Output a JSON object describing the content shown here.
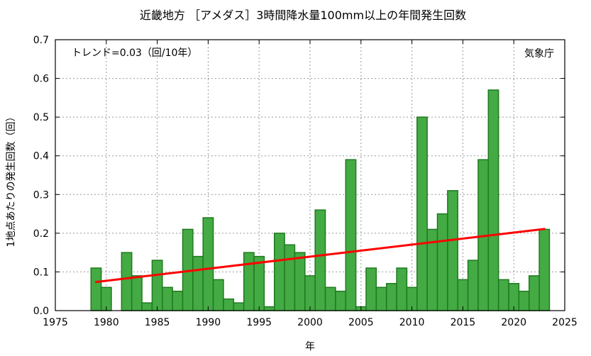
{
  "chart_data": {
    "type": "bar",
    "title": "近畿地方 ［アメダス］3時間降水量100mm以上の年間発生回数",
    "xlabel": "年",
    "ylabel": "1地点あたりの発生回数（回）",
    "trend_label": "トレンド=0.03（回/10年）",
    "source_label": "気象庁",
    "xlim": [
      1975,
      2025
    ],
    "ylim": [
      0,
      0.7
    ],
    "x_ticks": [
      1975,
      1980,
      1985,
      1990,
      1995,
      2000,
      2005,
      2010,
      2015,
      2020,
      2025
    ],
    "y_ticks": [
      0.0,
      0.1,
      0.2,
      0.3,
      0.4,
      0.5,
      0.6,
      0.7
    ],
    "grid": true,
    "bar_color": "#44aa44",
    "bar_edge_color": "#1f7a1f",
    "trend_color": "#ff0000",
    "x": [
      1979,
      1980,
      1981,
      1982,
      1983,
      1984,
      1985,
      1986,
      1987,
      1988,
      1989,
      1990,
      1991,
      1992,
      1993,
      1994,
      1995,
      1996,
      1997,
      1998,
      1999,
      2000,
      2001,
      2002,
      2003,
      2004,
      2005,
      2006,
      2007,
      2008,
      2009,
      2010,
      2011,
      2012,
      2013,
      2014,
      2015,
      2016,
      2017,
      2018,
      2019,
      2020,
      2021,
      2022,
      2023
    ],
    "values": [
      0.11,
      0.06,
      0.0,
      0.15,
      0.09,
      0.02,
      0.13,
      0.06,
      0.05,
      0.21,
      0.14,
      0.24,
      0.08,
      0.03,
      0.02,
      0.15,
      0.14,
      0.01,
      0.2,
      0.17,
      0.15,
      0.09,
      0.26,
      0.06,
      0.05,
      0.39,
      0.01,
      0.11,
      0.06,
      0.07,
      0.11,
      0.06,
      0.5,
      0.21,
      0.25,
      0.31,
      0.08,
      0.13,
      0.39,
      0.57,
      0.08,
      0.07,
      0.05,
      0.09,
      0.21
    ],
    "trend_line": {
      "x": [
        1979,
        2023
      ],
      "y": [
        0.074,
        0.211
      ]
    }
  }
}
